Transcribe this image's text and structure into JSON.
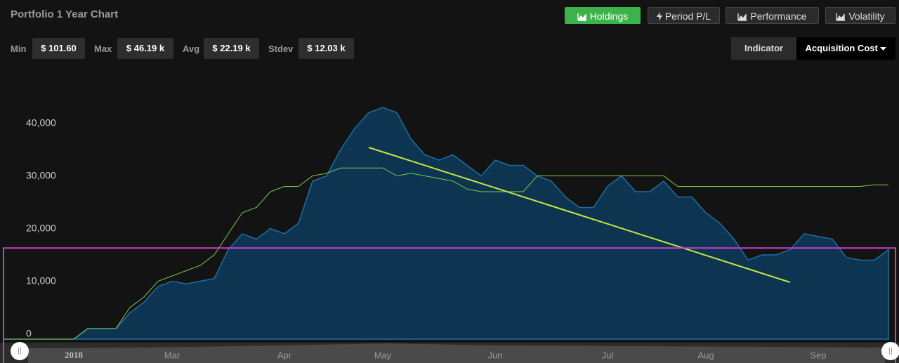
{
  "header": {
    "title": "Portfolio 1 Year Chart",
    "tabs": [
      "Holdings",
      "Period P/L",
      "Performance",
      "Volatility"
    ]
  },
  "stats": [
    {
      "label": "Min",
      "value": "$ 101.60"
    },
    {
      "label": "Max",
      "value": "$ 46.19 k"
    },
    {
      "label": "Avg",
      "value": "$ 22.19 k"
    },
    {
      "label": "Stdev",
      "value": "$ 12.03 k"
    }
  ],
  "indicator": {
    "label": "Indicator",
    "selected": "Acquisition Cost"
  },
  "chart_data": {
    "type": "area",
    "categories": [
      null,
      null,
      null,
      null,
      null,
      "2018",
      null,
      null,
      null,
      null,
      null,
      null,
      "Mar",
      null,
      null,
      null,
      null,
      null,
      null,
      null,
      "Apr",
      null,
      null,
      null,
      null,
      null,
      null,
      "May",
      null,
      null,
      null,
      null,
      null,
      null,
      null,
      "Jun",
      null,
      null,
      null,
      null,
      null,
      null,
      null,
      "Jul",
      null,
      null,
      null,
      null,
      null,
      null,
      "Aug",
      null,
      null,
      null,
      null,
      null,
      null,
      null,
      "Sep",
      null,
      null,
      null,
      null,
      null
    ],
    "series": [
      {
        "kind": "area",
        "color": "#1f6fa0",
        "fill": "#0d3552",
        "values": [
          0,
          0,
          0,
          0,
          0,
          0,
          2000,
          2000,
          2000,
          5000,
          7000,
          10000,
          11000,
          10500,
          11000,
          11500,
          17000,
          20000,
          19000,
          21000,
          20000,
          22000,
          30000,
          31000,
          36000,
          40000,
          43000,
          44000,
          43000,
          38000,
          35000,
          34000,
          35000,
          33000,
          31000,
          34000,
          33000,
          33000,
          31000,
          30000,
          27000,
          25000,
          25000,
          29000,
          31000,
          28000,
          28000,
          30000,
          27000,
          27000,
          24000,
          22000,
          19000,
          15000,
          16000,
          16000,
          17000,
          20000,
          19500,
          19000,
          15500,
          15000,
          15000,
          17000
        ]
      },
      {
        "kind": "line",
        "color": "#7ec850",
        "values": [
          0,
          0,
          0,
          0,
          0,
          0,
          2000,
          2000,
          2000,
          6000,
          8000,
          11000,
          12000,
          13000,
          14000,
          16000,
          20000,
          24000,
          25000,
          28000,
          29000,
          29000,
          31000,
          31500,
          32500,
          32500,
          32500,
          32500,
          31000,
          31500,
          31000,
          30500,
          30000,
          28500,
          28000,
          28000,
          28000,
          28000,
          31000,
          31000,
          31000,
          31000,
          31000,
          31000,
          31000,
          31000,
          31000,
          31000,
          29000,
          29000,
          29000,
          29000,
          29000,
          29000,
          29000,
          29000,
          29000,
          29000,
          29000,
          29000,
          29000,
          29000,
          29300,
          29300
        ]
      },
      {
        "kind": "line",
        "color": "#c8e63c",
        "width": 2,
        "values": [
          null,
          null,
          null,
          null,
          null,
          null,
          null,
          null,
          null,
          null,
          null,
          null,
          null,
          null,
          null,
          null,
          null,
          null,
          null,
          null,
          null,
          null,
          null,
          null,
          null,
          null,
          36400,
          35550,
          34700,
          33840,
          32990,
          32130,
          31280,
          30430,
          29570,
          28720,
          27870,
          27010,
          26160,
          25300,
          24450,
          23600,
          22740,
          21890,
          21040,
          20180,
          19330,
          18470,
          17620,
          16770,
          15910,
          15060,
          14200,
          13350,
          12500,
          11640,
          10800,
          null,
          null,
          null,
          null,
          null,
          null,
          null
        ]
      }
    ],
    "threshold": 17300,
    "threshold_color": "#c83cc8",
    "ylim": [
      0,
      50000
    ],
    "yticks": [
      0,
      {
        "value": 10000,
        "label": "10,000"
      },
      {
        "value": 20000,
        "label": "20,000"
      },
      {
        "value": 30000,
        "label": "30,000"
      },
      {
        "value": 40000,
        "label": "40,000"
      }
    ],
    "grid": false
  }
}
